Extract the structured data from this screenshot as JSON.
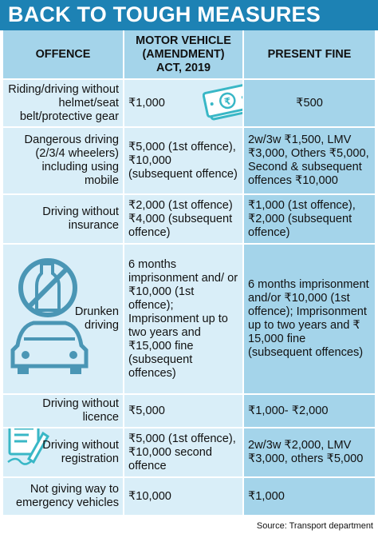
{
  "title": "BACK TO TOUGH MEASURES",
  "headers": {
    "offence": "OFFENCE",
    "act": "MOTOR VEHICLE (AMENDMENT) ACT, 2019",
    "present": "PRESENT FINE"
  },
  "rows": [
    {
      "offence": "Riding/driving without helmet/seat belt/protective gear",
      "act": "₹1,000",
      "present": "₹500"
    },
    {
      "offence": "Dangerous driving (2/3/4 wheelers) including using mobile",
      "act": "₹5,000 (1st offence), ₹10,000 (subsequent offence)",
      "present": "2w/3w ₹1,500, LMV ₹3,000, Others ₹5,000, Second & subsequent offences ₹10,000"
    },
    {
      "offence": "Driving without insurance",
      "act": "₹2,000 (1st offence) ₹4,000 (subsequent offence)",
      "present": "₹1,000 (1st offence), ₹2,000 (subsequent offence)"
    },
    {
      "offence": "Drunken driving",
      "act": "6 months imprisonment and/ or ₹10,000 (1st offence); Imprisonment up to two years and ₹15,000 fine (subsequent offences)",
      "present": "6 months imprisonment and/or ₹10,000 (1st offence); Imprisonment up to two years and ₹ 15,000 fine (subsequent offences)"
    },
    {
      "offence": "Driving without licence",
      "act": "₹5,000",
      "present": "₹1,000- ₹2,000"
    },
    {
      "offence": "Driving without registration",
      "act": "₹5,000 (1st offence), ₹10,000 second offence",
      "present": "2w/3w ₹2,000, LMV ₹3,000, others ₹5,000"
    },
    {
      "offence": "Not giving way to emergency vehicles",
      "act": "₹10,000",
      "present": "₹1,000"
    }
  ],
  "source": "Source: Transport department"
}
